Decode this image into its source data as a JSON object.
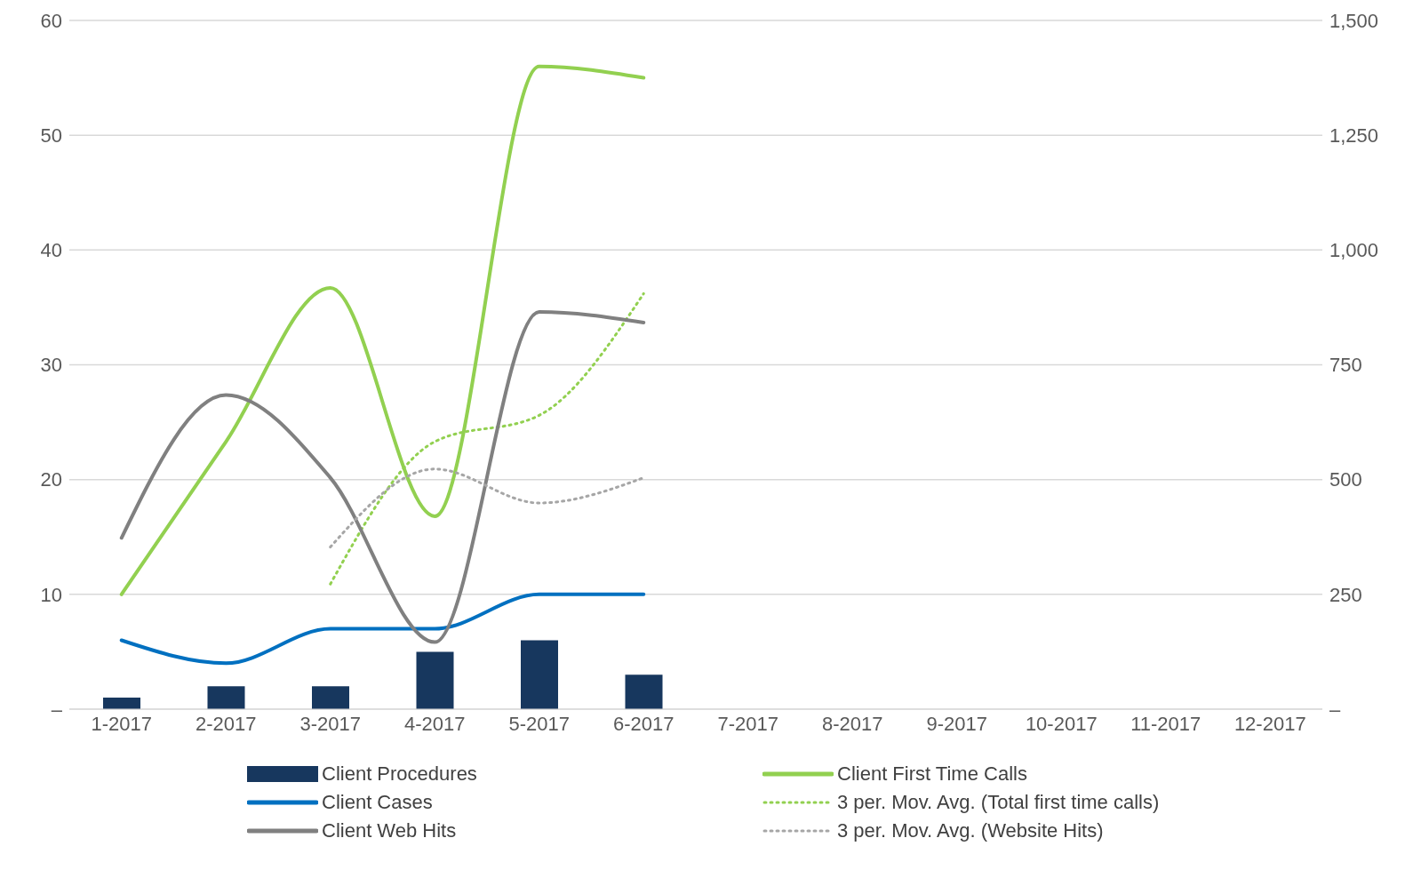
{
  "chart_data": {
    "type": "line",
    "categories": [
      "1-2017",
      "2-2017",
      "3-2017",
      "4-2017",
      "5-2017",
      "6-2017",
      "7-2017",
      "8-2017",
      "9-2017",
      "10-2017",
      "11-2017",
      "12-2017"
    ],
    "series": [
      {
        "name": "Client Procedures",
        "type": "bar",
        "color": "#17375e",
        "values": [
          1,
          2,
          2,
          5,
          6,
          3,
          null,
          null,
          null,
          null,
          null,
          null
        ]
      },
      {
        "name": "Client First Time Calls",
        "color": "#92d050",
        "line_style": "solid",
        "values": [
          10,
          23.3,
          36.7,
          16.8,
          56,
          55,
          null,
          null,
          null,
          null,
          null,
          null
        ]
      },
      {
        "name": "Client Cases",
        "color": "#0070c0",
        "line_style": "solid",
        "values": [
          6,
          4,
          7,
          7,
          10,
          10,
          null,
          null,
          null,
          null,
          null,
          null
        ]
      },
      {
        "name": "3 per. Mov. Avg.  (Total first time calls)",
        "color": "#92d050",
        "line_style": "dotted",
        "values": [
          null,
          null,
          10.9,
          23.3,
          25.6,
          36.2,
          null,
          null,
          null,
          null,
          null,
          null
        ]
      },
      {
        "name": "Client Web Hits",
        "color": "#808080",
        "line_style": "solid",
        "axis": "y2",
        "values": [
          373,
          684,
          504,
          146,
          865,
          842,
          null,
          null,
          null,
          null,
          null,
          null
        ]
      },
      {
        "name": "3 per. Mov. Avg. (Website Hits)",
        "color": "#a6a6a6",
        "line_style": "dotted",
        "axis": "y2",
        "values": [
          null,
          null,
          353,
          523,
          449,
          504,
          null,
          null,
          null,
          null,
          null,
          null
        ]
      }
    ],
    "ylim": [
      0,
      60
    ],
    "yticks": [
      {
        "value": 0,
        "label": "–"
      },
      10,
      20,
      30,
      40,
      50,
      60
    ],
    "y2lim": [
      0,
      1500
    ],
    "y2ticks": [
      {
        "value": 0,
        "label": "–"
      },
      {
        "value": 250,
        "label": "250"
      },
      {
        "value": 500,
        "label": "500"
      },
      {
        "value": 750,
        "label": "750"
      },
      {
        "value": 1000,
        "label": "1,000"
      },
      {
        "value": 1250,
        "label": "1,250"
      },
      {
        "value": 1500,
        "label": "1,500"
      }
    ],
    "grid": "y",
    "legend": "bottom"
  }
}
